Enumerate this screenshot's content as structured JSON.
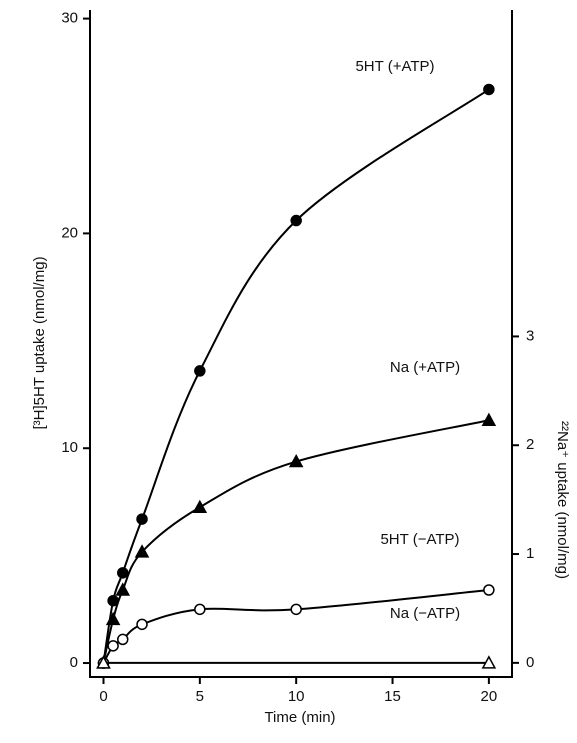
{
  "chart_data": {
    "type": "line",
    "x_label": "Time (min)",
    "y_label": "[³H]5HT uptake (nmol/mg)",
    "y2_label": "²²Na⁺ uptake (nmol/mg)",
    "xlim": [
      -0.7,
      21.2
    ],
    "xticks": [
      0,
      5,
      10,
      15,
      20
    ],
    "ylim": [
      -0.65,
      30.4
    ],
    "yticks": [
      0,
      10,
      20,
      30
    ],
    "y2lim": [
      -0.13,
      6.0
    ],
    "y2ticks": [
      0,
      1,
      2,
      3
    ],
    "series": [
      {
        "name": "5HT (+ATP)",
        "color": "#000000",
        "marker": "circle",
        "filled": true,
        "x": [
          0,
          0.5,
          1,
          2,
          5,
          10,
          20
        ],
        "values": [
          0,
          2.9,
          4.2,
          6.7,
          13.6,
          20.6,
          26.7
        ]
      },
      {
        "name": "Na (+ATP)",
        "color": "#000000",
        "marker": "triangle",
        "filled": true,
        "axis": "y2",
        "x": [
          0,
          0.5,
          1,
          2,
          5,
          10,
          20
        ],
        "values": [
          0,
          0.4,
          0.67,
          1.02,
          1.43,
          1.85,
          2.23
        ]
      },
      {
        "name": "5HT (−ATP)",
        "color": "#000000",
        "marker": "circle",
        "filled": false,
        "x": [
          0,
          0.5,
          1,
          2,
          5,
          10,
          20
        ],
        "values": [
          0,
          0.8,
          1.1,
          1.8,
          2.5,
          2.5,
          3.4
        ]
      },
      {
        "name": "Na (−ATP)",
        "color": "#000000",
        "marker": "triangle",
        "filled": false,
        "axis": "y2",
        "x": [
          0,
          20
        ],
        "values": [
          0,
          0
        ]
      }
    ]
  }
}
